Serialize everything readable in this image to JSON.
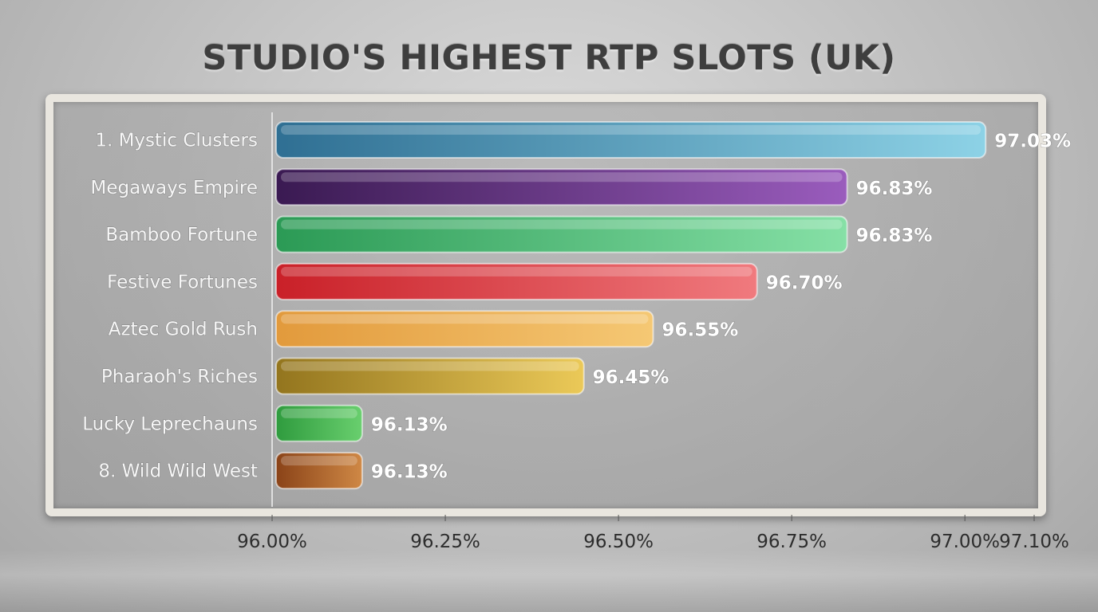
{
  "chart_data": {
    "type": "bar",
    "orientation": "horizontal",
    "title": "STUDIO'S HIGHEST RTP SLOTS (UK)",
    "categories": [
      "1. Mystic Clusters",
      "Megaways Empire",
      "Bamboo Fortune",
      "Festive Fortunes",
      "Aztec Gold Rush",
      "Pharaoh's Riches",
      "Lucky Leprechauns",
      "8. Wild Wild West"
    ],
    "values": [
      97.03,
      96.83,
      96.83,
      96.7,
      96.55,
      96.45,
      96.13,
      96.13
    ],
    "value_labels": [
      "97.03%",
      "96.83%",
      "96.83%",
      "96.70%",
      "96.55%",
      "96.45%",
      "96.13%",
      "96.13%"
    ],
    "xlim": [
      96.0,
      97.1
    ],
    "ticks": [
      96.0,
      96.25,
      96.5,
      96.75,
      97.0,
      97.1
    ],
    "tick_labels": [
      "96.00%",
      "96.25%",
      "96.50%",
      "96.75%",
      "97.00%",
      "97.10%"
    ],
    "grid": false,
    "legend": "none",
    "colors": [
      [
        "#2f6f93",
        "#8dd2e6"
      ],
      [
        "#3a1a52",
        "#9a5cbd"
      ],
      [
        "#2b9a55",
        "#86e0a6"
      ],
      [
        "#c92028",
        "#f07a7e"
      ],
      [
        "#e29a3c",
        "#f5c874"
      ],
      [
        "#93751e",
        "#ebc958"
      ],
      [
        "#2f9b3e",
        "#69cf6e"
      ],
      [
        "#8a4318",
        "#cf8845"
      ]
    ]
  }
}
